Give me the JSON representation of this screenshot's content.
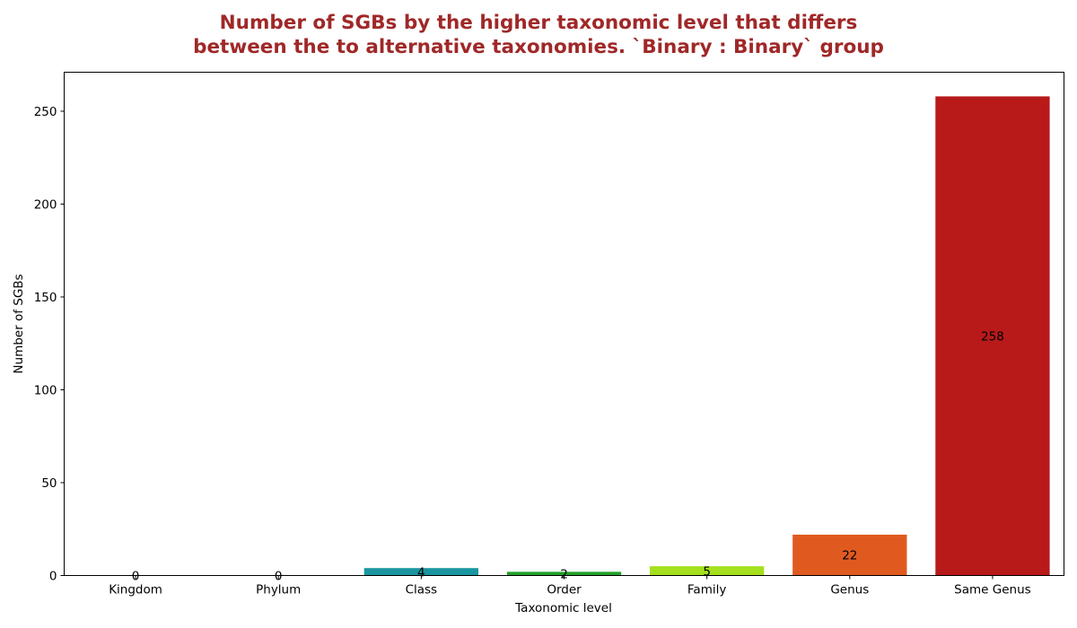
{
  "chart_data": {
    "type": "bar",
    "title_lines": [
      "Number of SGBs by the higher taxonomic level that differs",
      "between the to alternative taxonomies. `Binary : Binary` group"
    ],
    "xlabel": "Taxonomic level",
    "ylabel": "Number of SGBs",
    "categories": [
      "Kingdom",
      "Phylum",
      "Class",
      "Order",
      "Family",
      "Genus",
      "Same Genus"
    ],
    "values": [
      0,
      0,
      4,
      2,
      5,
      22,
      258
    ],
    "data_labels": [
      "0",
      "0",
      "4",
      "2",
      "5",
      "22",
      "258"
    ],
    "colors": [
      "#2f7fc1",
      "#6a3d9a",
      "#1a96a0",
      "#24a12a",
      "#a4e01e",
      "#e05a20",
      "#b81a1a"
    ],
    "ylim": [
      0,
      271
    ],
    "yticks": [
      0,
      50,
      100,
      150,
      200,
      250
    ],
    "ytick_labels": [
      "0",
      "50",
      "100",
      "150",
      "200",
      "250"
    ],
    "title_color": "#a02828",
    "grid": false,
    "legend": "none"
  }
}
